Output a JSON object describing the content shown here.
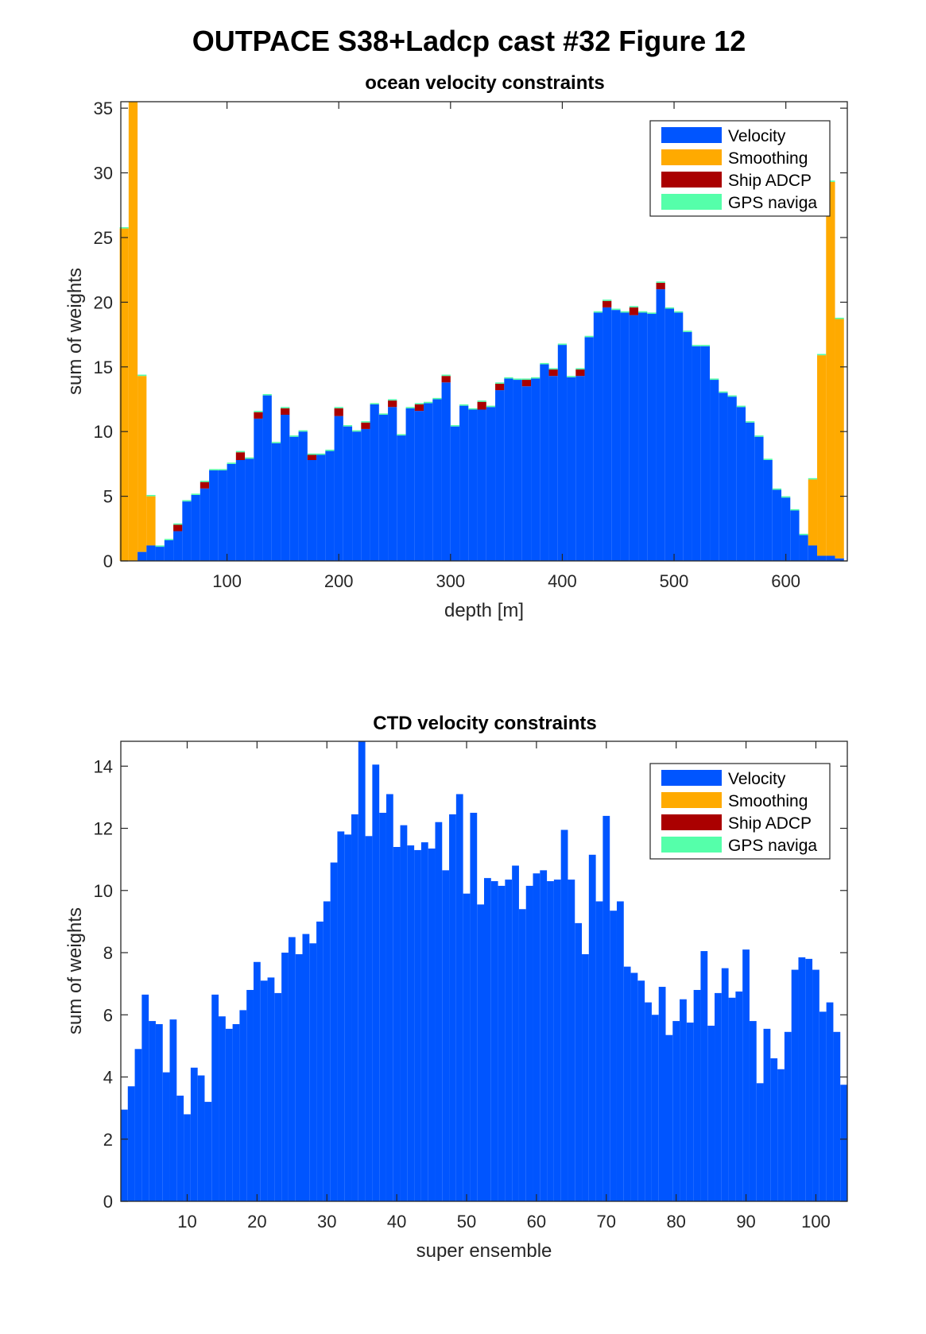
{
  "figure": {
    "title": "OUTPACE S38+Ladcp cast #32  Figure 12"
  },
  "chart_data": [
    {
      "type": "bar",
      "stacked": true,
      "title": "ocean velocity constraints",
      "xlabel": "depth [m]",
      "ylabel": "sum of weights",
      "xlim": [
        5,
        655
      ],
      "ylim": [
        0,
        35.5
      ],
      "xticks": [
        100,
        200,
        300,
        400,
        500,
        600
      ],
      "yticks": [
        0,
        5,
        10,
        15,
        20,
        25,
        30,
        35
      ],
      "bin_width": 8,
      "legend_position": "top-right",
      "series": [
        {
          "name": "Velocity",
          "color": "#0055ff"
        },
        {
          "name": "Smoothing",
          "color": "#ffaa00"
        },
        {
          "name": "Ship ADCP",
          "color": "#aa0000"
        },
        {
          "name": "GPS naviga",
          "color": "#55ffaa"
        }
      ],
      "x": [
        8,
        16,
        24,
        32,
        40,
        48,
        56,
        64,
        72,
        80,
        88,
        96,
        104,
        112,
        120,
        128,
        136,
        144,
        152,
        160,
        168,
        176,
        184,
        192,
        200,
        208,
        216,
        224,
        232,
        240,
        248,
        256,
        264,
        272,
        280,
        288,
        296,
        304,
        312,
        320,
        328,
        336,
        344,
        352,
        360,
        368,
        376,
        384,
        392,
        400,
        408,
        416,
        424,
        432,
        440,
        448,
        456,
        464,
        472,
        480,
        488,
        496,
        504,
        512,
        520,
        528,
        536,
        544,
        552,
        560,
        568,
        576,
        584,
        592,
        600,
        608,
        616,
        624,
        632,
        640,
        648
      ],
      "values": {
        "Velocity": [
          0,
          0,
          0.7,
          1.2,
          1.1,
          1.6,
          2.3,
          4.6,
          5.1,
          5.6,
          7.0,
          7.0,
          7.5,
          7.8,
          7.9,
          11.0,
          12.8,
          9.1,
          11.3,
          9.6,
          10.0,
          7.8,
          8.2,
          8.5,
          11.2,
          10.4,
          10.0,
          10.2,
          12.1,
          11.3,
          11.9,
          9.7,
          11.8,
          11.6,
          12.2,
          12.5,
          13.8,
          10.4,
          12.0,
          11.7,
          11.7,
          11.9,
          13.2,
          14.1,
          14.0,
          13.5,
          14.1,
          15.2,
          14.3,
          16.7,
          14.2,
          14.3,
          17.3,
          19.2,
          19.6,
          19.4,
          19.2,
          19.0,
          19.2,
          19.1,
          21.0,
          19.5,
          19.2,
          17.7,
          16.6,
          16.6,
          14.0,
          13.0,
          12.7,
          11.9,
          10.7,
          9.6,
          7.8,
          5.5,
          4.9,
          3.9,
          2.0,
          1.2,
          0.4,
          0.4,
          0.2
        ],
        "Smoothing": [
          25.7,
          35.5,
          13.6,
          3.8,
          0,
          0,
          0,
          0,
          0,
          0,
          0,
          0,
          0,
          0,
          0,
          0,
          0,
          0,
          0,
          0,
          0,
          0,
          0,
          0,
          0,
          0,
          0,
          0,
          0,
          0,
          0,
          0,
          0,
          0,
          0,
          0,
          0,
          0,
          0,
          0,
          0,
          0,
          0,
          0,
          0,
          0,
          0,
          0,
          0,
          0,
          0,
          0,
          0,
          0,
          0,
          0,
          0,
          0,
          0,
          0,
          0,
          0,
          0,
          0,
          0,
          0,
          0,
          0,
          0,
          0,
          0,
          0,
          0,
          0,
          0,
          0,
          0,
          5.1,
          15.5,
          28.9,
          18.5
        ],
        "Ship ADCP": [
          0,
          0,
          0,
          0,
          0,
          0,
          0.5,
          0,
          0,
          0.5,
          0,
          0,
          0,
          0.6,
          0,
          0.5,
          0,
          0,
          0.5,
          0,
          0,
          0.4,
          0,
          0,
          0.6,
          0,
          0,
          0.5,
          0,
          0,
          0.5,
          0,
          0,
          0.5,
          0,
          0,
          0.5,
          0,
          0,
          0,
          0.6,
          0,
          0.5,
          0,
          0,
          0.5,
          0,
          0,
          0.5,
          0,
          0,
          0.5,
          0,
          0,
          0.5,
          0,
          0,
          0.6,
          0,
          0,
          0.5,
          0,
          0,
          0,
          0,
          0,
          0,
          0,
          0,
          0,
          0,
          0,
          0,
          0,
          0,
          0,
          0,
          0,
          0,
          0,
          0
        ],
        "GPS naviga": [
          0.1,
          0.1,
          0.1,
          0.1,
          0.1,
          0.1,
          0.1,
          0.1,
          0.1,
          0.1,
          0.1,
          0.1,
          0.1,
          0.1,
          0.1,
          0.1,
          0.1,
          0.1,
          0.1,
          0.1,
          0.1,
          0.1,
          0.1,
          0.1,
          0.1,
          0.1,
          0.1,
          0.1,
          0.1,
          0.1,
          0.1,
          0.1,
          0.1,
          0.1,
          0.1,
          0.1,
          0.1,
          0.1,
          0.1,
          0.1,
          0.1,
          0.1,
          0.1,
          0.1,
          0.1,
          0.1,
          0.1,
          0.1,
          0.1,
          0.1,
          0.1,
          0.1,
          0.1,
          0.1,
          0.1,
          0.1,
          0.1,
          0.1,
          0.1,
          0.1,
          0.1,
          0.1,
          0.1,
          0.1,
          0.1,
          0.1,
          0.1,
          0.1,
          0.1,
          0.1,
          0.1,
          0.1,
          0.1,
          0.1,
          0.1,
          0.1,
          0.1,
          0.1,
          0.1,
          0.1,
          0.1
        ]
      }
    },
    {
      "type": "bar",
      "stacked": true,
      "title": "CTD velocity constraints",
      "xlabel": "super ensemble",
      "ylabel": "sum of weights",
      "xlim": [
        0.5,
        104.5
      ],
      "ylim": [
        0,
        14.8
      ],
      "xticks": [
        10,
        20,
        30,
        40,
        50,
        60,
        70,
        80,
        90,
        100
      ],
      "yticks": [
        0,
        2,
        4,
        6,
        8,
        10,
        12,
        14
      ],
      "bin_width": 1,
      "legend_position": "top-right",
      "series": [
        {
          "name": "Velocity",
          "color": "#0055ff"
        },
        {
          "name": "Smoothing",
          "color": "#ffaa00"
        },
        {
          "name": "Ship ADCP",
          "color": "#aa0000"
        },
        {
          "name": "GPS naviga",
          "color": "#55ffaa"
        }
      ],
      "x_start": 1,
      "values": {
        "Velocity": [
          2.95,
          3.7,
          4.9,
          6.65,
          5.8,
          5.7,
          4.15,
          5.85,
          3.4,
          2.8,
          4.3,
          4.05,
          3.2,
          6.65,
          5.95,
          5.55,
          5.7,
          6.15,
          6.8,
          7.7,
          7.1,
          7.2,
          6.7,
          8.0,
          8.5,
          7.95,
          8.6,
          8.3,
          9.0,
          9.65,
          10.9,
          11.9,
          11.8,
          12.45,
          14.8,
          11.75,
          14.05,
          12.5,
          13.1,
          11.4,
          12.1,
          11.45,
          11.3,
          11.55,
          11.35,
          12.2,
          10.65,
          12.45,
          13.1,
          9.9,
          12.5,
          9.55,
          10.4,
          10.3,
          10.15,
          10.35,
          10.8,
          9.4,
          10.15,
          10.55,
          10.65,
          10.3,
          10.35,
          11.95,
          10.35,
          8.95,
          7.95,
          11.15,
          9.65,
          12.4,
          9.35,
          9.65,
          7.55,
          7.35,
          7.1,
          6.4,
          6.0,
          6.9,
          5.35,
          5.8,
          6.5,
          5.75,
          6.8,
          8.05,
          5.65,
          6.7,
          7.5,
          6.55,
          6.75,
          8.1,
          5.8,
          3.8,
          5.55,
          4.6,
          4.25,
          5.45,
          7.45,
          7.85,
          7.8,
          7.45,
          6.1,
          6.4,
          5.45,
          3.75
        ]
      }
    }
  ]
}
